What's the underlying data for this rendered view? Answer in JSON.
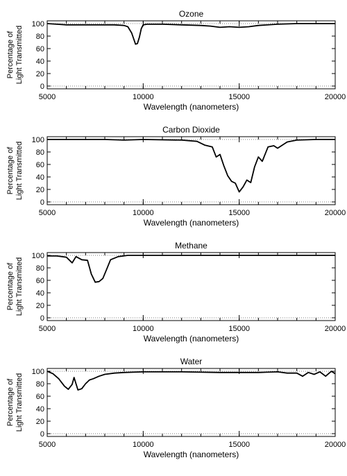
{
  "chart_data": [
    {
      "type": "line",
      "title": "Ozone",
      "ylabel_line1": "Percentage of",
      "ylabel_line2": "Light Transmitted",
      "xlabel": "Wavelength (nanometers)",
      "xlim": [
        5000,
        20000
      ],
      "ylim": [
        0,
        100
      ],
      "xticks": [
        5000,
        10000,
        15000,
        20000
      ],
      "yticks": [
        0,
        20,
        40,
        60,
        80,
        100
      ],
      "grid": "horizontal dotted lines at 100 and 0",
      "series": [
        {
          "x": [
            5000,
            5500,
            6000,
            7000,
            8000,
            8500,
            9000,
            9200,
            9400,
            9600,
            9700,
            9800,
            9900,
            10000,
            10200,
            11000,
            12000,
            13000,
            13500,
            14000,
            14500,
            15000,
            15500,
            16000,
            17000,
            18000,
            19000,
            20000
          ],
          "y": [
            100,
            99,
            98,
            98,
            98,
            98,
            97,
            95,
            85,
            67,
            68,
            78,
            92,
            98,
            99,
            99,
            98,
            97,
            96,
            94,
            95,
            94,
            95,
            97,
            99,
            100,
            100,
            100
          ]
        }
      ]
    },
    {
      "type": "line",
      "title": "Carbon Dioxide",
      "ylabel_line1": "Percentage of",
      "ylabel_line2": "Light Transmitted",
      "xlabel": "Wavelength (nanometers)",
      "xlim": [
        5000,
        20000
      ],
      "ylim": [
        0,
        100
      ],
      "xticks": [
        5000,
        10000,
        15000,
        20000
      ],
      "yticks": [
        0,
        20,
        40,
        60,
        80,
        100
      ],
      "grid": "horizontal dotted lines at 100 and 0",
      "series": [
        {
          "x": [
            5000,
            6000,
            8000,
            9000,
            10000,
            12000,
            12800,
            13200,
            13600,
            13800,
            14000,
            14200,
            14400,
            14600,
            14800,
            15000,
            15200,
            15400,
            15600,
            15800,
            16000,
            16200,
            16500,
            16800,
            17000,
            17500,
            18000,
            19000,
            20000
          ],
          "y": [
            100,
            100,
            100,
            99,
            100,
            99,
            97,
            91,
            88,
            72,
            76,
            58,
            42,
            33,
            30,
            16,
            24,
            35,
            31,
            56,
            72,
            65,
            88,
            90,
            86,
            96,
            99,
            100,
            100
          ]
        }
      ]
    },
    {
      "type": "line",
      "title": "Methane",
      "ylabel_line1": "Percentage of",
      "ylabel_line2": "Light Transmitted",
      "xlabel": "Wavelength (nanometers)",
      "xlim": [
        5000,
        20000
      ],
      "ylim": [
        0,
        100
      ],
      "xticks": [
        5000,
        10000,
        15000,
        20000
      ],
      "yticks": [
        0,
        20,
        40,
        60,
        80,
        100
      ],
      "grid": "horizontal dotted lines at 100 and 0",
      "series": [
        {
          "x": [
            5000,
            5500,
            6000,
            6300,
            6500,
            6800,
            7100,
            7300,
            7500,
            7700,
            7900,
            8100,
            8300,
            8700,
            9200,
            10000,
            12000,
            15000,
            18000,
            20000
          ],
          "y": [
            99,
            99,
            97,
            88,
            98,
            93,
            92,
            70,
            57,
            58,
            63,
            78,
            93,
            98,
            100,
            100,
            100,
            100,
            100,
            100
          ]
        }
      ]
    },
    {
      "type": "line",
      "title": "Water",
      "ylabel_line1": "Percentage of",
      "ylabel_line2": "Light Transmitted",
      "xlabel": "Wavelength (nanometers)",
      "xlim": [
        5000,
        20000
      ],
      "ylim": [
        0,
        100
      ],
      "xticks": [
        5000,
        10000,
        15000,
        20000
      ],
      "yticks": [
        0,
        20,
        40,
        60,
        80,
        100
      ],
      "grid": "horizontal dotted lines at 100 and 0",
      "series": [
        {
          "x": [
            5000,
            5300,
            5600,
            5900,
            6100,
            6300,
            6400,
            6600,
            6800,
            7000,
            7200,
            7400,
            7700,
            8000,
            8500,
            9000,
            10000,
            12000,
            14000,
            15000,
            16000,
            17000,
            17500,
            18000,
            18300,
            18600,
            18900,
            19200,
            19500,
            19800,
            20000
          ],
          "y": [
            100,
            96,
            88,
            76,
            71,
            79,
            90,
            70,
            72,
            80,
            86,
            88,
            92,
            95,
            97,
            98,
            99,
            99,
            98,
            98,
            98,
            99,
            97,
            97,
            92,
            98,
            95,
            99,
            92,
            100,
            96
          ]
        }
      ]
    }
  ]
}
